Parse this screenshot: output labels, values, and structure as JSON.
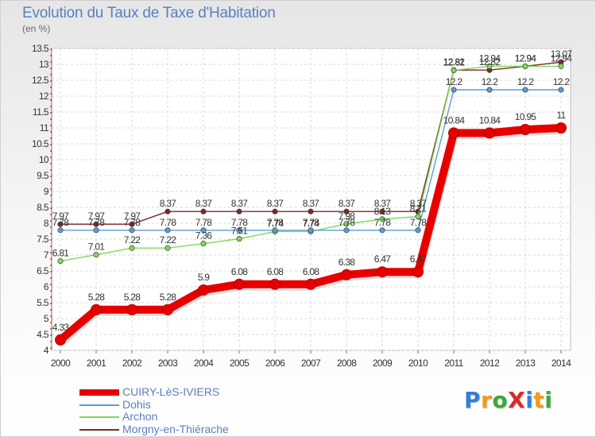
{
  "header": {
    "title": "Evolution du Taux de Taxe d'Habitation",
    "subtitle": "(en %)"
  },
  "chart_data": {
    "type": "line",
    "title": "Evolution du Taux de Taxe d'Habitation",
    "ylabel": "(en %)",
    "xlabel": "",
    "x": [
      "2000",
      "2001",
      "2002",
      "2003",
      "2004",
      "2005",
      "2006",
      "2007",
      "2008",
      "2009",
      "2010",
      "2011",
      "2012",
      "2013",
      "2014"
    ],
    "ylim": [
      4,
      13.5
    ],
    "yticks": [
      "4",
      "4.5",
      "5",
      "5.5",
      "6",
      "6.5",
      "7",
      "7.5",
      "8",
      "8.5",
      "9",
      "9.5",
      "10",
      "10.5",
      "11",
      "11.5",
      "12",
      "12.5",
      "13",
      "13.5"
    ],
    "grid": true,
    "legend_position": "bottom-left",
    "series": [
      {
        "name": "CUIRY-LèS-IVIERS",
        "color": "#e60000",
        "values": [
          4.33,
          5.28,
          5.28,
          5.28,
          5.9,
          6.08,
          6.08,
          6.08,
          6.38,
          6.47,
          6.47,
          10.84,
          10.84,
          10.95,
          11
        ],
        "labels": [
          "4.33",
          "5.28",
          "5.28",
          "5.28",
          "5.9",
          "6.08",
          "6.08",
          "6.08",
          "6.38",
          "6.47",
          "6.47",
          "10.84",
          "10.84",
          "10.95",
          "11"
        ]
      },
      {
        "name": "Dohis",
        "color": "#5b9bd5",
        "values": [
          7.78,
          7.78,
          7.78,
          7.78,
          7.78,
          7.78,
          7.78,
          7.78,
          7.78,
          7.78,
          7.78,
          12.2,
          12.2,
          12.2,
          12.2
        ],
        "labels": [
          "7.78",
          "7.78",
          "7.78",
          "7.78",
          "7.78",
          "7.78",
          "7.78",
          "7.78",
          "7.78",
          "7.78",
          "7.78",
          "12.2",
          "12.2",
          "12.2",
          "12.2"
        ]
      },
      {
        "name": "Archon",
        "color": "#7ed957",
        "values": [
          6.81,
          7.01,
          7.22,
          7.22,
          7.36,
          7.51,
          7.74,
          7.74,
          7.98,
          8.13,
          8.21,
          12.81,
          12.94,
          12.94,
          12.94
        ],
        "labels": [
          "6.81",
          "7.01",
          "7.22",
          "7.22",
          "7.36",
          "7.51",
          "7.74",
          "7.74",
          "7.98",
          "8.13",
          "8.21",
          "12.81",
          "12.94",
          "12.94",
          "12.94"
        ]
      },
      {
        "name": "Morgny-en-Thiérache",
        "color": "#7a2a2a",
        "values": [
          7.97,
          7.97,
          7.97,
          8.37,
          8.37,
          8.37,
          8.37,
          8.37,
          8.37,
          8.37,
          8.37,
          12.82,
          12.82,
          12.94,
          13.07
        ],
        "labels": [
          "7.97",
          "7.97",
          "7.97",
          "8.37",
          "8.37",
          "8.37",
          "8.37",
          "8.37",
          "8.37",
          "8.37",
          "8.37",
          "12.82",
          "12.82",
          "12.94",
          "13.07"
        ]
      }
    ]
  },
  "logo": {
    "text": "ProXiti",
    "letter_colors": [
      "#2f7fd6",
      "#f29a1c",
      "#3da838",
      "#d62b2b",
      "#2f7fd6",
      "#f29a1c",
      "#3da838"
    ]
  }
}
